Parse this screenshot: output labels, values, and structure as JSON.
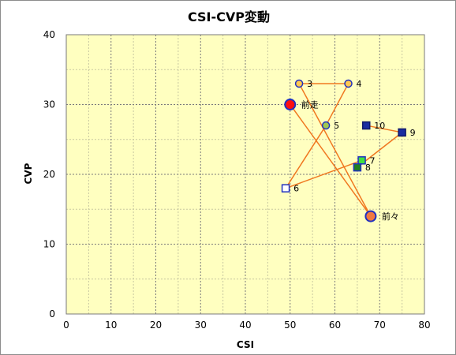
{
  "chart_data": {
    "type": "scatter",
    "title": "CSI-CVP変動",
    "xlabel": "CSI",
    "ylabel": "CVP",
    "xlim": [
      0,
      80
    ],
    "ylim": [
      0,
      40
    ],
    "x_ticks": [
      0,
      10,
      20,
      30,
      40,
      50,
      60,
      70,
      80
    ],
    "y_ticks": [
      0,
      10,
      20,
      30,
      40
    ],
    "x_minor_step": 5,
    "y_minor_step": 5,
    "grid": true,
    "colors": {
      "plot_bg": "#ffffc0",
      "line": "#f07820",
      "major_grid": "#7a7a7a",
      "minor_grid": "#c8c8a0"
    },
    "points": [
      {
        "label": "前走",
        "x": 50,
        "y": 30,
        "shape": "circle-large",
        "fill": "#ff1010",
        "stroke": "#2030c0"
      },
      {
        "label": "前々",
        "x": 68,
        "y": 14,
        "shape": "circle-large",
        "fill": "#f07840",
        "stroke": "#2030c0"
      },
      {
        "label": "3",
        "x": 52,
        "y": 33,
        "shape": "circle",
        "fill": "#ffc850",
        "stroke": "#2030c0"
      },
      {
        "label": "4",
        "x": 63,
        "y": 33,
        "shape": "circle",
        "fill": "#ffc850",
        "stroke": "#2030c0"
      },
      {
        "label": "5",
        "x": 58,
        "y": 27,
        "shape": "circle",
        "fill": "#a0c850",
        "stroke": "#2030c0"
      },
      {
        "label": "6",
        "x": 49,
        "y": 18,
        "shape": "square",
        "fill": "#ffffff",
        "stroke": "#2030c0"
      },
      {
        "label": "7",
        "x": 66,
        "y": 22,
        "shape": "square",
        "fill": "#40e040",
        "stroke": "#2030c0"
      },
      {
        "label": "8",
        "x": 65,
        "y": 21,
        "shape": "square",
        "fill": "#208020",
        "stroke": "#2030c0"
      },
      {
        "label": "9",
        "x": 75,
        "y": 26,
        "shape": "square",
        "fill": "#1a2ca0",
        "stroke": "#10186a"
      },
      {
        "label": "10",
        "x": 67,
        "y": 27,
        "shape": "square",
        "fill": "#1a2ca0",
        "stroke": "#10186a"
      }
    ]
  }
}
